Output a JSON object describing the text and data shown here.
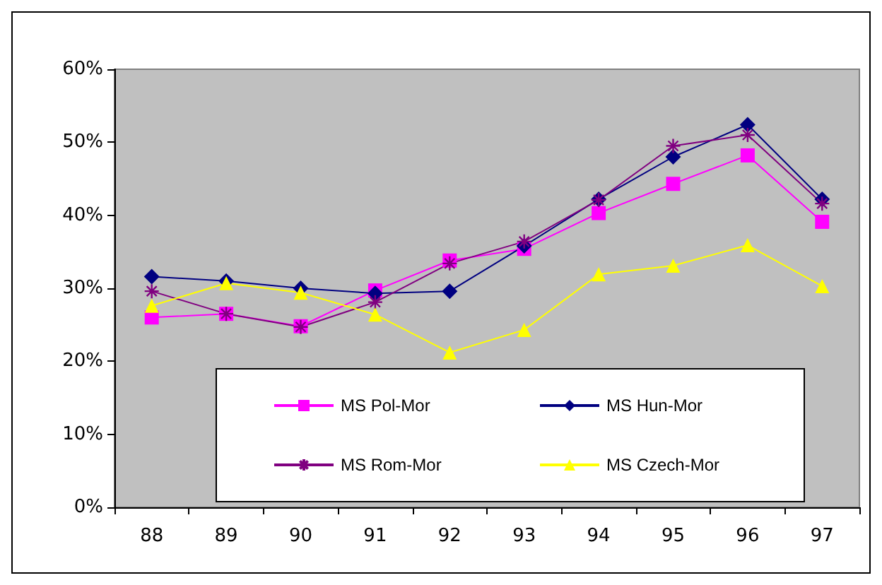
{
  "chart_data": {
    "type": "line",
    "categories": [
      "88",
      "89",
      "90",
      "91",
      "92",
      "93",
      "94",
      "95",
      "96",
      "97"
    ],
    "series": [
      {
        "name": "MS Pol-Mor",
        "color": "#ff00ff",
        "marker": "square",
        "values": [
          26.0,
          26.5,
          24.8,
          29.7,
          33.8,
          35.4,
          40.3,
          44.3,
          48.2,
          39.1
        ]
      },
      {
        "name": "MS Hun-Mor",
        "color": "#000080",
        "marker": "diamond",
        "values": [
          31.6,
          31.0,
          30.0,
          29.3,
          29.6,
          35.8,
          42.2,
          48.0,
          52.4,
          42.2
        ]
      },
      {
        "name": "MS Rom-Mor",
        "color": "#800080",
        "marker": "cross",
        "values": [
          29.6,
          26.5,
          24.7,
          28.1,
          33.4,
          36.4,
          42.1,
          49.5,
          51.0,
          41.6
        ]
      },
      {
        "name": "MS Czech-Mor",
        "color": "#ffff00",
        "marker": "triangle",
        "values": [
          27.6,
          30.7,
          29.4,
          26.4,
          21.2,
          24.3,
          31.9,
          33.1,
          35.9,
          30.3
        ]
      }
    ],
    "ylim": [
      0,
      60
    ],
    "yticks": [
      {
        "value": 0,
        "label": "0%"
      },
      {
        "value": 10,
        "label": "10%"
      },
      {
        "value": 20,
        "label": "20%"
      },
      {
        "value": 30,
        "label": "30%"
      },
      {
        "value": 40,
        "label": "40%"
      },
      {
        "value": 50,
        "label": "50%"
      },
      {
        "value": 60,
        "label": "60%"
      }
    ],
    "grid": false,
    "legend": "bottom"
  }
}
